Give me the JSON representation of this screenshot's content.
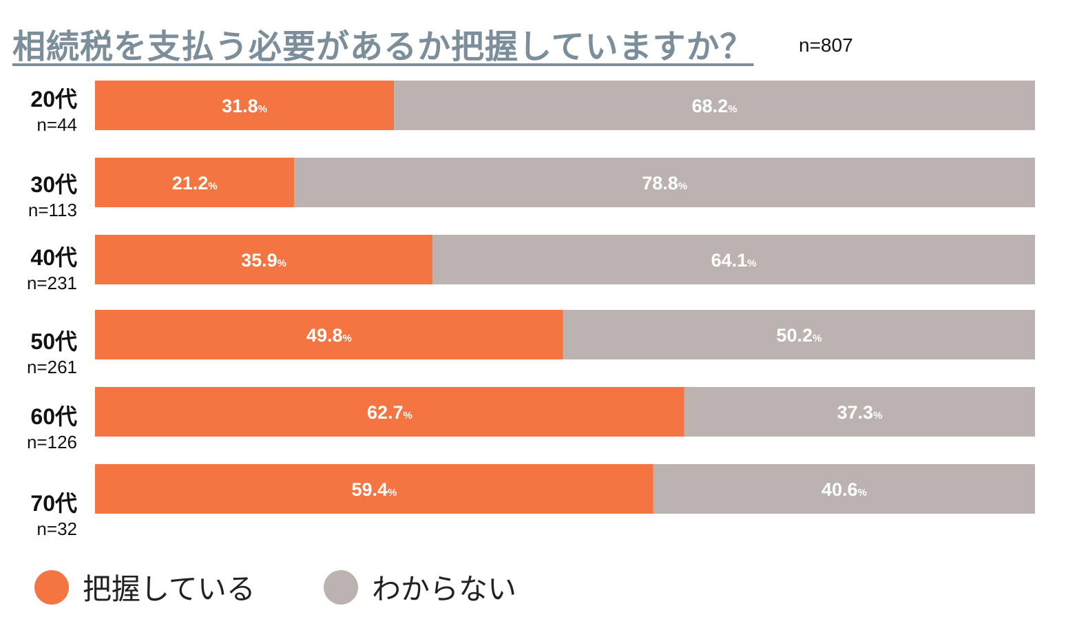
{
  "chart_data": {
    "type": "bar",
    "orientation": "horizontal",
    "stacked": true,
    "title": "相続税を支払う必要があるか把握していますか？",
    "total_n": "n=807",
    "categories": [
      "20代",
      "30代",
      "40代",
      "50代",
      "60代",
      "70代"
    ],
    "category_n": [
      "n=44",
      "n=113",
      "n=231",
      "n=261",
      "n=126",
      "n=32"
    ],
    "series": [
      {
        "name": "把握している",
        "color": "#f47541",
        "values": [
          31.8,
          21.2,
          35.9,
          49.8,
          62.7,
          59.4
        ]
      },
      {
        "name": "わからない",
        "color": "#bcb3b1",
        "values": [
          68.2,
          78.8,
          64.1,
          50.2,
          37.3,
          40.6
        ]
      }
    ],
    "value_unit": "%",
    "xlim": [
      0,
      100
    ],
    "legend_position": "bottom-left"
  }
}
